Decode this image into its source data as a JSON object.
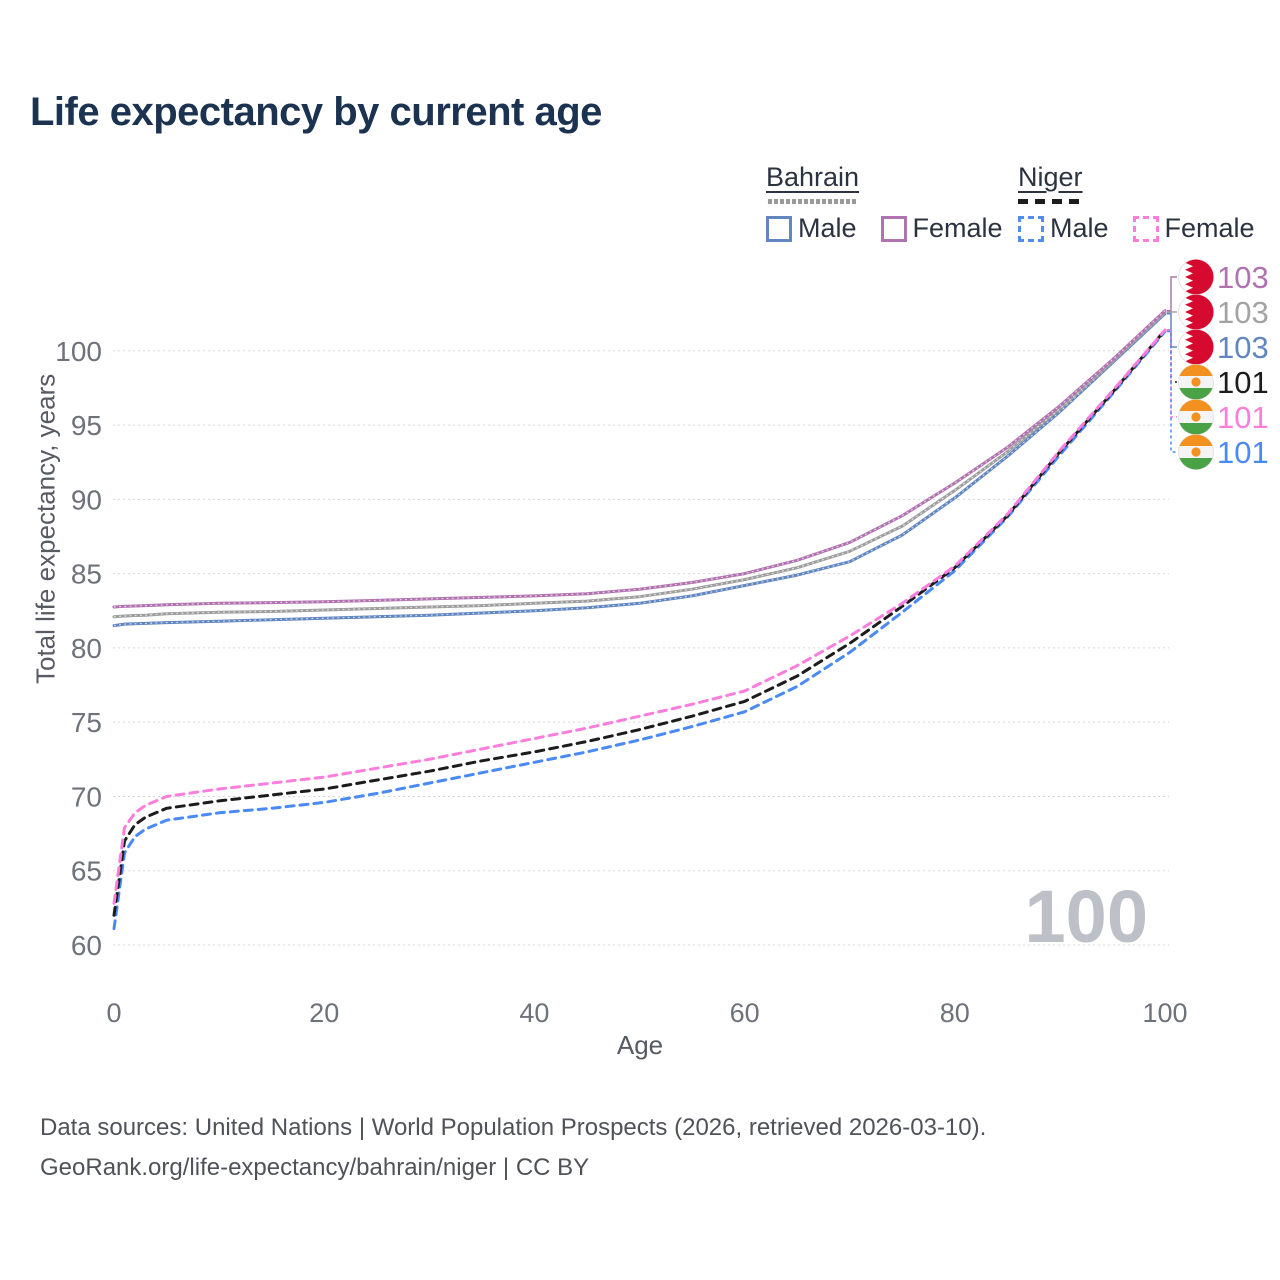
{
  "header": {
    "title": "Life expectancy by current age"
  },
  "legend": {
    "groups": [
      {
        "country": "Bahrain",
        "line_style": "solid",
        "underline_color": "#9a9a9a",
        "items": [
          {
            "label": "Male",
            "color": "#6186c0",
            "dashed": false
          },
          {
            "label": "Female",
            "color": "#b173af",
            "dashed": false
          }
        ]
      },
      {
        "country": "Niger",
        "line_style": "dashed",
        "underline_color": "#1c1c1c",
        "items": [
          {
            "label": "Male",
            "color": "#538cf0",
            "dashed": true
          },
          {
            "label": "Female",
            "color": "#fb7edd",
            "dashed": true
          }
        ]
      }
    ]
  },
  "chart_data": {
    "type": "line",
    "title": "Life expectancy by current age",
    "xlabel": "Age",
    "ylabel": "Total life expectancy, years",
    "xlim": [
      0,
      100
    ],
    "ylim": [
      60,
      103.5
    ],
    "xticks": [
      "0",
      "20",
      "40",
      "60",
      "80",
      "100"
    ],
    "xtick_values": [
      0,
      20,
      40,
      60,
      80,
      100
    ],
    "yticks": [
      "60",
      "65",
      "70",
      "75",
      "80",
      "85",
      "90",
      "95",
      "100"
    ],
    "ytick_values": [
      60,
      65,
      70,
      75,
      80,
      85,
      90,
      95,
      100
    ],
    "grid": "horizontal-dotted",
    "legend_position": "top-right",
    "watermark": "100",
    "ages": [
      0,
      1,
      2,
      3,
      5,
      10,
      15,
      20,
      25,
      30,
      35,
      40,
      45,
      50,
      55,
      60,
      65,
      70,
      75,
      80,
      85,
      90,
      95,
      100
    ],
    "series": [
      {
        "name": "Bahrain Male",
        "country": "Bahrain",
        "sex": "Male",
        "line": "solid",
        "color": "#6186c0",
        "values": [
          81.5,
          81.6,
          81.62,
          81.65,
          81.7,
          81.8,
          81.9,
          82.0,
          82.1,
          82.2,
          82.35,
          82.5,
          82.7,
          83.0,
          83.5,
          84.2,
          84.9,
          85.8,
          87.6,
          90.1,
          92.9,
          95.9,
          99.2,
          102.5
        ]
      },
      {
        "name": "Bahrain Both sexes",
        "country": "Bahrain",
        "sex": "Both",
        "line": "solid",
        "color": "#9e9e9e",
        "values": [
          82.1,
          82.15,
          82.18,
          82.2,
          82.3,
          82.4,
          82.45,
          82.55,
          82.65,
          82.75,
          82.85,
          83.0,
          83.15,
          83.45,
          83.95,
          84.6,
          85.4,
          86.5,
          88.2,
          90.6,
          93.2,
          96.1,
          99.3,
          102.6
        ]
      },
      {
        "name": "Bahrain Female",
        "country": "Bahrain",
        "sex": "Female",
        "line": "solid",
        "color": "#b173af",
        "values": [
          82.75,
          82.8,
          82.82,
          82.85,
          82.9,
          83.0,
          83.05,
          83.1,
          83.2,
          83.3,
          83.4,
          83.5,
          83.65,
          83.95,
          84.4,
          85.0,
          85.9,
          87.1,
          88.9,
          91.1,
          93.5,
          96.3,
          99.4,
          102.7
        ]
      },
      {
        "name": "Niger Male",
        "country": "Niger",
        "sex": "Male",
        "line": "dashed",
        "color": "#4a8af4",
        "values": [
          61.1,
          66.2,
          67.3,
          67.8,
          68.4,
          68.9,
          69.2,
          69.6,
          70.2,
          70.9,
          71.6,
          72.3,
          73.0,
          73.8,
          74.7,
          75.7,
          77.4,
          79.7,
          82.4,
          85.2,
          88.8,
          93.0,
          97.1,
          101.3
        ]
      },
      {
        "name": "Niger Both sexes",
        "country": "Niger",
        "sex": "Both",
        "line": "dashed",
        "color": "#1c1c1c",
        "values": [
          62.0,
          67.0,
          68.1,
          68.6,
          69.2,
          69.7,
          70.1,
          70.5,
          71.1,
          71.7,
          72.4,
          73.0,
          73.7,
          74.5,
          75.4,
          76.4,
          78.1,
          80.3,
          82.8,
          85.4,
          88.9,
          93.2,
          97.2,
          101.4
        ]
      },
      {
        "name": "Niger Female",
        "country": "Niger",
        "sex": "Female",
        "line": "dashed",
        "color": "#fb7edd",
        "values": [
          62.8,
          67.9,
          68.9,
          69.4,
          70.0,
          70.5,
          70.9,
          71.3,
          71.9,
          72.5,
          73.2,
          73.9,
          74.6,
          75.4,
          76.2,
          77.1,
          78.8,
          80.8,
          83.0,
          85.5,
          89.0,
          93.3,
          97.3,
          101.4
        ]
      }
    ],
    "end_labels": [
      {
        "value": "103",
        "country": "Bahrain",
        "series": "Bahrain Female",
        "color": "#b173af",
        "end_value": 102.7,
        "dashed": false
      },
      {
        "value": "103",
        "country": "Bahrain",
        "series": "Bahrain Both sexes",
        "color": "#a3a3a3",
        "end_value": 102.6,
        "dashed": false
      },
      {
        "value": "103",
        "country": "Bahrain",
        "series": "Bahrain Male",
        "color": "#6186c0",
        "end_value": 102.5,
        "dashed": false
      },
      {
        "value": "101",
        "country": "Niger",
        "series": "Niger Both sexes",
        "color": "#1c1c1c",
        "end_value": 101.4,
        "dashed": true
      },
      {
        "value": "101",
        "country": "Niger",
        "series": "Niger Female",
        "color": "#fb7edd",
        "end_value": 101.4,
        "dashed": true
      },
      {
        "value": "101",
        "country": "Niger",
        "series": "Niger Male",
        "color": "#4a8af4",
        "end_value": 101.3,
        "dashed": true
      }
    ],
    "flag_colors": {
      "bahrain_red": "#d60a2e",
      "niger_orange": "#f29120",
      "niger_green": "#4aa247"
    }
  },
  "footer": {
    "line1": "Data sources: United Nations | World Population Prospects (2026, retrieved 2026-03-10).",
    "line2": "GeoRank.org/life-expectancy/bahrain/niger | CC BY"
  }
}
